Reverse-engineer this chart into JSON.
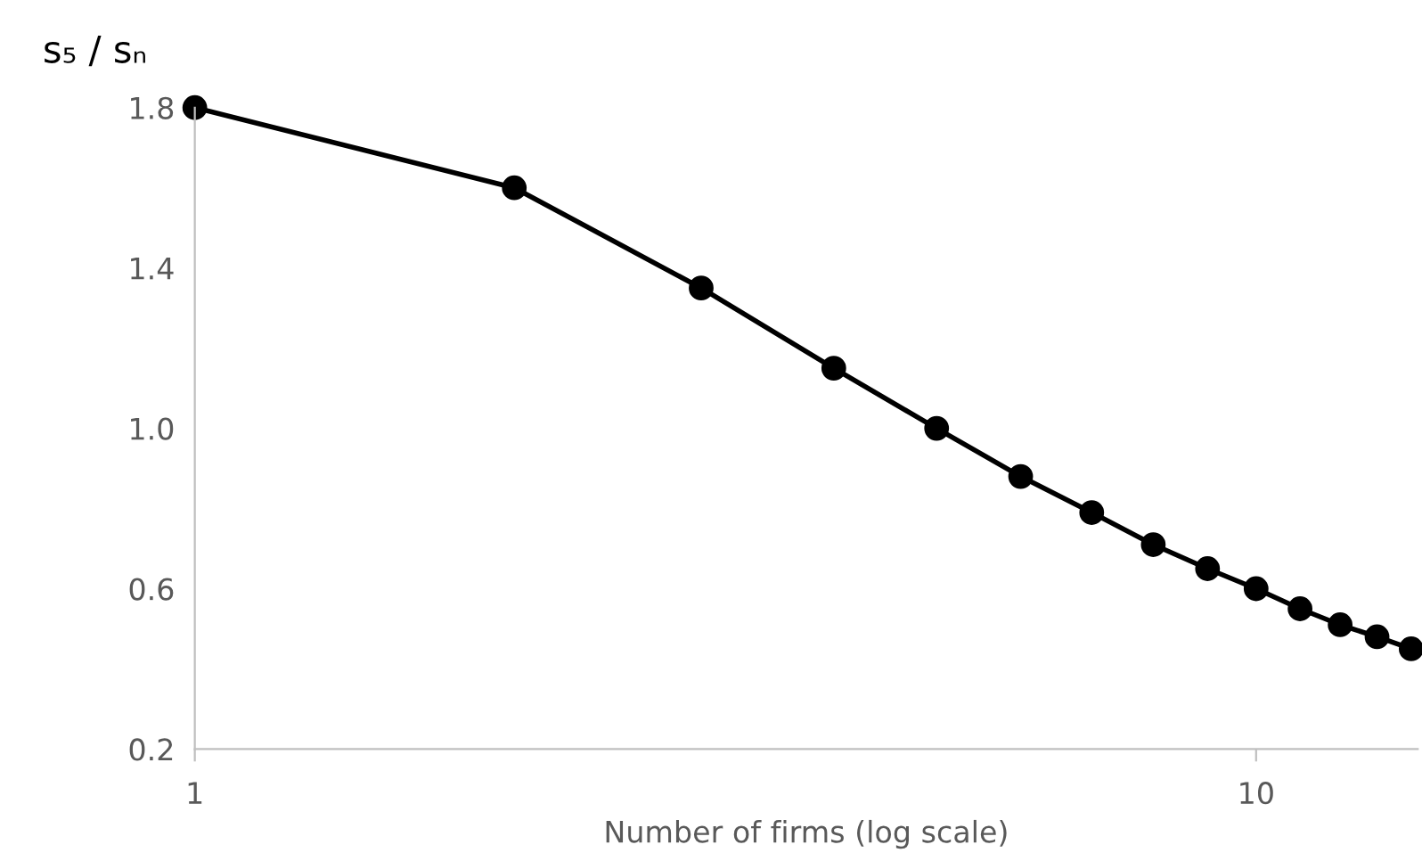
{
  "chart_data": {
    "type": "line",
    "xlabel": "Number of firms (log scale)",
    "ylabel": "s₅ / sₙ",
    "x": [
      1,
      2,
      3,
      4,
      5,
      6,
      7,
      8,
      9,
      10,
      11,
      12,
      13,
      14
    ],
    "series": [
      {
        "color": "#000000",
        "values": [
          1.8,
          1.6,
          1.35,
          1.15,
          1.0,
          0.88,
          0.79,
          0.71,
          0.65,
          0.6,
          0.55,
          0.51,
          0.48,
          0.45
        ]
      }
    ],
    "marker": "circle",
    "line_style": "solid",
    "log": "x",
    "grid": false,
    "legend": false,
    "xlim": [
      1,
      14.2
    ],
    "xticks": [
      1,
      10
    ],
    "ylim": [
      0.2,
      1.8
    ],
    "yticks": [
      0.2,
      0.6,
      {
        "value": 1.0,
        "label": "1.0"
      },
      1.4,
      1.8
    ]
  }
}
